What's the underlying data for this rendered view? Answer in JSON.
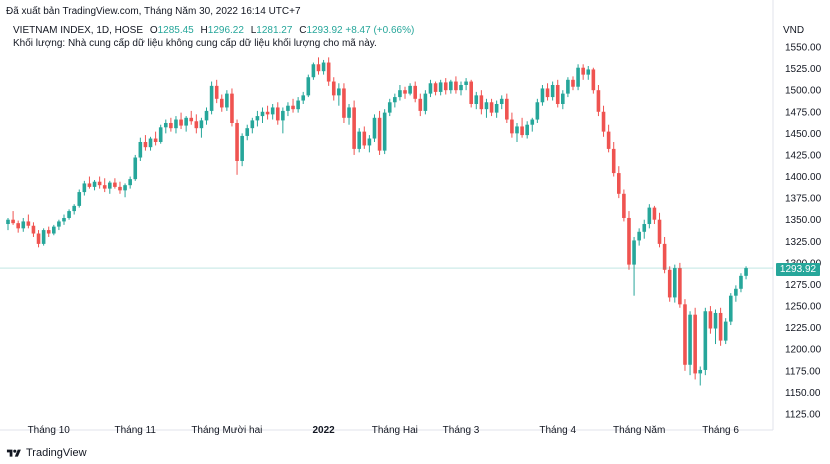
{
  "header": {
    "published": "Đã xuất bản TradingView.com, Tháng Năm 30, 2022 16:14 UTC+7"
  },
  "legend": {
    "symbol": "VIETNAM INDEX, 1D, HOSE",
    "o_label": "O",
    "o_value": "1285.45",
    "h_label": "H",
    "h_value": "1296.22",
    "l_label": "L",
    "l_value": "1281.27",
    "c_label": "C",
    "c_value": "1293.92",
    "change": "+8.47 (+0.66%)",
    "volume_note": "Khối lượng: Nhà cung cấp dữ liệu không cung cấp dữ liệu khối lượng cho mã này."
  },
  "axis": {
    "currency": "VND",
    "last_price": "1293.92"
  },
  "footer": {
    "brand": "TradingView",
    "logo_icon": "tradingview-logo-icon"
  },
  "colors": {
    "up": "#26a69a",
    "down": "#ef5350",
    "last_line": "#26a69a"
  },
  "chart_data": {
    "type": "candlestick",
    "y_ticks": [
      1550,
      1525,
      1500,
      1475,
      1450,
      1425,
      1400,
      1375,
      1350,
      1325,
      1300,
      1275,
      1250,
      1225,
      1200,
      1175,
      1150,
      1125
    ],
    "y_tick_labels": [
      "1550.00",
      "1525.00",
      "1500.00",
      "1475.00",
      "1450.00",
      "1425.00",
      "1400.00",
      "1375.00",
      "1350.00",
      "1325.00",
      "1300.00",
      "1275.00",
      "1250.00",
      "1225.00",
      "1200.00",
      "1175.00",
      "1150.00",
      "1125.00"
    ],
    "ylim": [
      1118,
      1563
    ],
    "x_labels": [
      {
        "label": "Tháng 10",
        "index": 8,
        "bold": false
      },
      {
        "label": "Tháng 11",
        "index": 25,
        "bold": false
      },
      {
        "label": "Tháng Mười hai",
        "index": 43,
        "bold": false
      },
      {
        "label": "2022",
        "index": 62,
        "bold": true
      },
      {
        "label": "Tháng Hai",
        "index": 76,
        "bold": false
      },
      {
        "label": "Tháng 3",
        "index": 89,
        "bold": false
      },
      {
        "label": "Tháng 4",
        "index": 108,
        "bold": false
      },
      {
        "label": "Tháng Năm",
        "index": 124,
        "bold": false
      },
      {
        "label": "Tháng 6",
        "index": 140,
        "bold": false
      }
    ],
    "candles": [
      [
        1345,
        1352,
        1338,
        1350
      ],
      [
        1350,
        1360,
        1344,
        1346
      ],
      [
        1346,
        1349,
        1335,
        1340
      ],
      [
        1340,
        1352,
        1336,
        1348
      ],
      [
        1348,
        1356,
        1340,
        1343
      ],
      [
        1343,
        1347,
        1330,
        1334
      ],
      [
        1334,
        1338,
        1318,
        1322
      ],
      [
        1322,
        1340,
        1320,
        1338
      ],
      [
        1338,
        1342,
        1330,
        1334
      ],
      [
        1334,
        1344,
        1332,
        1342
      ],
      [
        1342,
        1350,
        1338,
        1348
      ],
      [
        1348,
        1356,
        1344,
        1352
      ],
      [
        1352,
        1362,
        1350,
        1360
      ],
      [
        1360,
        1368,
        1356,
        1366
      ],
      [
        1366,
        1385,
        1364,
        1382
      ],
      [
        1382,
        1395,
        1378,
        1392
      ],
      [
        1392,
        1400,
        1386,
        1388
      ],
      [
        1388,
        1396,
        1384,
        1394
      ],
      [
        1394,
        1400,
        1386,
        1390
      ],
      [
        1390,
        1398,
        1382,
        1386
      ],
      [
        1386,
        1395,
        1380,
        1393
      ],
      [
        1393,
        1398,
        1386,
        1388
      ],
      [
        1388,
        1394,
        1380,
        1384
      ],
      [
        1384,
        1392,
        1376,
        1390
      ],
      [
        1390,
        1400,
        1386,
        1397
      ],
      [
        1397,
        1425,
        1395,
        1422
      ],
      [
        1422,
        1445,
        1418,
        1440
      ],
      [
        1440,
        1448,
        1430,
        1434
      ],
      [
        1434,
        1446,
        1430,
        1444
      ],
      [
        1444,
        1452,
        1436,
        1440
      ],
      [
        1440,
        1460,
        1438,
        1457
      ],
      [
        1457,
        1466,
        1450,
        1462
      ],
      [
        1462,
        1468,
        1452,
        1456
      ],
      [
        1456,
        1470,
        1450,
        1466
      ],
      [
        1466,
        1474,
        1455,
        1459
      ],
      [
        1459,
        1470,
        1452,
        1468
      ],
      [
        1468,
        1476,
        1460,
        1464
      ],
      [
        1464,
        1472,
        1450,
        1456
      ],
      [
        1456,
        1468,
        1445,
        1465
      ],
      [
        1465,
        1480,
        1460,
        1476
      ],
      [
        1476,
        1510,
        1472,
        1505
      ],
      [
        1505,
        1512,
        1485,
        1490
      ],
      [
        1490,
        1495,
        1475,
        1480
      ],
      [
        1480,
        1500,
        1476,
        1496
      ],
      [
        1496,
        1502,
        1458,
        1462
      ],
      [
        1462,
        1466,
        1402,
        1418
      ],
      [
        1418,
        1450,
        1412,
        1447
      ],
      [
        1447,
        1460,
        1442,
        1456
      ],
      [
        1456,
        1468,
        1450,
        1465
      ],
      [
        1465,
        1476,
        1458,
        1470
      ],
      [
        1470,
        1480,
        1462,
        1475
      ],
      [
        1475,
        1482,
        1466,
        1472
      ],
      [
        1472,
        1484,
        1466,
        1480
      ],
      [
        1480,
        1486,
        1460,
        1465
      ],
      [
        1465,
        1480,
        1450,
        1476
      ],
      [
        1476,
        1486,
        1470,
        1482
      ],
      [
        1482,
        1490,
        1474,
        1478
      ],
      [
        1478,
        1492,
        1474,
        1488
      ],
      [
        1488,
        1498,
        1484,
        1494
      ],
      [
        1494,
        1518,
        1492,
        1515
      ],
      [
        1515,
        1532,
        1512,
        1530
      ],
      [
        1530,
        1538,
        1518,
        1522
      ],
      [
        1522,
        1535,
        1518,
        1532
      ],
      [
        1532,
        1538,
        1505,
        1510
      ],
      [
        1510,
        1515,
        1488,
        1494
      ],
      [
        1494,
        1508,
        1482,
        1502
      ],
      [
        1502,
        1508,
        1462,
        1468
      ],
      [
        1468,
        1484,
        1460,
        1480
      ],
      [
        1480,
        1488,
        1425,
        1432
      ],
      [
        1432,
        1456,
        1428,
        1452
      ],
      [
        1452,
        1458,
        1432,
        1436
      ],
      [
        1436,
        1448,
        1428,
        1444
      ],
      [
        1444,
        1472,
        1440,
        1468
      ],
      [
        1468,
        1476,
        1425,
        1430
      ],
      [
        1430,
        1478,
        1426,
        1474
      ],
      [
        1474,
        1490,
        1470,
        1486
      ],
      [
        1486,
        1496,
        1480,
        1492
      ],
      [
        1492,
        1506,
        1488,
        1500
      ],
      [
        1500,
        1504,
        1490,
        1496
      ],
      [
        1496,
        1508,
        1494,
        1505
      ],
      [
        1505,
        1510,
        1486,
        1490
      ],
      [
        1490,
        1496,
        1470,
        1476
      ],
      [
        1476,
        1500,
        1472,
        1496
      ],
      [
        1496,
        1512,
        1492,
        1508
      ],
      [
        1508,
        1510,
        1494,
        1498
      ],
      [
        1498,
        1512,
        1494,
        1509
      ],
      [
        1509,
        1514,
        1495,
        1500
      ],
      [
        1500,
        1512,
        1496,
        1510
      ],
      [
        1510,
        1516,
        1496,
        1500
      ],
      [
        1500,
        1510,
        1494,
        1506
      ],
      [
        1506,
        1514,
        1500,
        1510
      ],
      [
        1510,
        1512,
        1480,
        1484
      ],
      [
        1484,
        1498,
        1478,
        1494
      ],
      [
        1494,
        1500,
        1472,
        1478
      ],
      [
        1478,
        1490,
        1468,
        1486
      ],
      [
        1486,
        1490,
        1470,
        1474
      ],
      [
        1474,
        1488,
        1468,
        1484
      ],
      [
        1484,
        1494,
        1478,
        1490
      ],
      [
        1490,
        1496,
        1462,
        1466
      ],
      [
        1466,
        1474,
        1445,
        1450
      ],
      [
        1450,
        1462,
        1440,
        1458
      ],
      [
        1458,
        1468,
        1445,
        1448
      ],
      [
        1448,
        1464,
        1444,
        1460
      ],
      [
        1460,
        1468,
        1452,
        1466
      ],
      [
        1466,
        1490,
        1462,
        1486
      ],
      [
        1486,
        1506,
        1482,
        1502
      ],
      [
        1502,
        1508,
        1488,
        1492
      ],
      [
        1492,
        1510,
        1488,
        1506
      ],
      [
        1506,
        1512,
        1480,
        1484
      ],
      [
        1484,
        1500,
        1478,
        1496
      ],
      [
        1496,
        1515,
        1492,
        1512
      ],
      [
        1512,
        1516,
        1500,
        1504
      ],
      [
        1504,
        1530,
        1500,
        1526
      ],
      [
        1526,
        1530,
        1512,
        1518
      ],
      [
        1518,
        1528,
        1512,
        1524
      ],
      [
        1524,
        1526,
        1496,
        1500
      ],
      [
        1500,
        1506,
        1470,
        1475
      ],
      [
        1475,
        1482,
        1446,
        1452
      ],
      [
        1452,
        1460,
        1428,
        1432
      ],
      [
        1432,
        1440,
        1400,
        1404
      ],
      [
        1404,
        1412,
        1375,
        1380
      ],
      [
        1380,
        1385,
        1348,
        1352
      ],
      [
        1352,
        1360,
        1292,
        1298
      ],
      [
        1298,
        1330,
        1262,
        1326
      ],
      [
        1326,
        1340,
        1320,
        1336
      ],
      [
        1336,
        1350,
        1328,
        1345
      ],
      [
        1345,
        1368,
        1340,
        1364
      ],
      [
        1364,
        1366,
        1345,
        1350
      ],
      [
        1350,
        1358,
        1318,
        1322
      ],
      [
        1322,
        1330,
        1288,
        1292
      ],
      [
        1292,
        1296,
        1255,
        1260
      ],
      [
        1260,
        1298,
        1254,
        1294
      ],
      [
        1294,
        1300,
        1248,
        1252
      ],
      [
        1252,
        1258,
        1175,
        1182
      ],
      [
        1182,
        1244,
        1170,
        1240
      ],
      [
        1240,
        1248,
        1165,
        1172
      ],
      [
        1172,
        1180,
        1158,
        1176
      ],
      [
        1176,
        1248,
        1170,
        1244
      ],
      [
        1244,
        1250,
        1218,
        1224
      ],
      [
        1224,
        1246,
        1206,
        1242
      ],
      [
        1242,
        1248,
        1204,
        1210
      ],
      [
        1210,
        1236,
        1206,
        1232
      ],
      [
        1232,
        1265,
        1228,
        1262
      ],
      [
        1262,
        1274,
        1255,
        1270
      ],
      [
        1270,
        1288,
        1266,
        1285
      ],
      [
        1285,
        1296,
        1281,
        1294
      ]
    ]
  }
}
